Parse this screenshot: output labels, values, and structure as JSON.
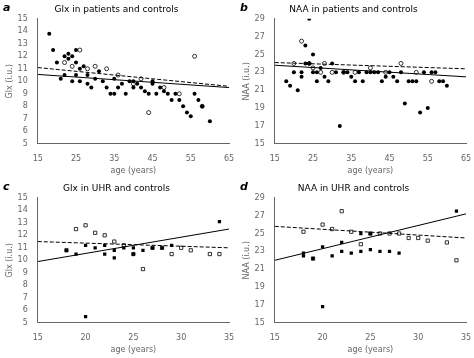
{
  "chart_data": [
    {
      "type": "scatter",
      "title": "Glx in patients and controls",
      "xlabel": "age (years)",
      "ylabel": "Glx (i.u.)",
      "xlim": [
        15,
        65
      ],
      "ylim": [
        5,
        15
      ],
      "xticks": [
        15,
        25,
        35,
        45,
        55,
        65
      ],
      "yticks": [
        5,
        6,
        7,
        8,
        9,
        10,
        11,
        12,
        13,
        14,
        15
      ],
      "grid": false,
      "annotations": [
        {
          "text": "a"
        }
      ],
      "series": [
        {
          "type": "scatter",
          "marker": "filled_circle",
          "color": "#000000",
          "x": [
            18,
            19,
            20,
            21,
            22,
            22,
            23,
            23,
            24,
            24,
            25,
            25,
            25,
            26,
            26,
            27,
            28,
            28,
            29,
            30,
            31,
            32,
            33,
            34,
            35,
            35,
            36,
            37,
            38,
            39,
            40,
            40,
            41,
            42,
            43,
            44,
            45,
            45,
            46,
            47,
            48,
            49,
            50,
            51,
            52,
            53,
            54,
            55,
            56,
            57,
            58,
            60
          ],
          "values": [
            13.8,
            12.5,
            11.5,
            10.2,
            12.0,
            10.5,
            12.2,
            11.8,
            12.0,
            10.0,
            10.5,
            11.5,
            12.5,
            11.0,
            10.0,
            11.2,
            10.5,
            9.8,
            9.5,
            10.2,
            10.8,
            10.0,
            9.5,
            9.0,
            10.2,
            9.0,
            9.5,
            9.8,
            9.0,
            10.0,
            10.0,
            9.5,
            9.8,
            9.5,
            9.2,
            9.0,
            10.0,
            9.8,
            9.0,
            9.5,
            9.2,
            9.0,
            8.5,
            9.0,
            8.5,
            8.0,
            7.5,
            7.2,
            9.0,
            8.5,
            8.0,
            6.8
          ]
        },
        {
          "type": "scatter",
          "marker": "open_circle",
          "color": "#000000",
          "x": [
            22,
            24,
            26,
            28,
            30,
            33,
            36,
            40,
            42,
            44,
            48,
            52,
            56,
            58
          ],
          "values": [
            11.5,
            11.2,
            12.5,
            11.0,
            11.2,
            11.0,
            10.5,
            9.8,
            10.2,
            7.5,
            9.5,
            9.0,
            12.0,
            8.0
          ]
        },
        {
          "type": "line",
          "line_style": "solid",
          "color": "#000000",
          "x": [
            15,
            65
          ],
          "values": [
            10.55,
            9.5
          ]
        },
        {
          "type": "line",
          "line_style": "dashed",
          "color": "#000000",
          "x": [
            15,
            65
          ],
          "values": [
            11.1,
            9.6
          ]
        }
      ]
    },
    {
      "type": "scatter",
      "title": "NAA in patients and controls",
      "xlabel": "age (years)",
      "ylabel": "NAA (i.u.)",
      "xlim": [
        15,
        65
      ],
      "ylim": [
        15,
        29
      ],
      "xticks": [
        15,
        25,
        35,
        45,
        55,
        65
      ],
      "yticks": [
        15,
        17,
        19,
        21,
        23,
        25,
        27,
        29
      ],
      "grid": false,
      "annotations": [
        {
          "text": "b"
        }
      ],
      "series": [
        {
          "type": "scatter",
          "marker": "filled_circle",
          "color": "#000000",
          "x": [
            18,
            19,
            20,
            21,
            22,
            22,
            23,
            23,
            24,
            24,
            25,
            25,
            26,
            26,
            27,
            28,
            29,
            30,
            31,
            32,
            33,
            34,
            35,
            36,
            37,
            38,
            39,
            40,
            41,
            42,
            43,
            44,
            45,
            46,
            47,
            48,
            49,
            50,
            51,
            52,
            53,
            54,
            55,
            56,
            57,
            58,
            59,
            60
          ],
          "values": [
            22,
            21.5,
            23,
            21,
            22.5,
            23,
            24,
            26,
            29,
            24,
            25,
            23,
            22,
            23,
            23.5,
            22.5,
            22,
            24,
            23,
            17,
            23,
            23,
            22.5,
            22,
            23,
            22,
            23,
            23,
            23,
            23,
            22,
            22.5,
            23,
            22.5,
            22,
            23,
            19.5,
            22,
            22,
            22,
            18.5,
            23,
            19,
            23,
            23,
            22,
            22,
            21.5
          ]
        },
        {
          "type": "scatter",
          "marker": "open_circle",
          "color": "#000000",
          "x": [
            20,
            22,
            24,
            25,
            27,
            28,
            30,
            33,
            36,
            40,
            44,
            48,
            52,
            56
          ],
          "values": [
            24,
            26.5,
            24,
            23.5,
            23,
            24,
            23,
            23,
            23,
            23.5,
            23,
            24,
            23,
            22
          ]
        },
        {
          "type": "line",
          "line_style": "solid",
          "color": "#000000",
          "x": [
            15,
            65
          ],
          "values": [
            23.8,
            22.5
          ]
        },
        {
          "type": "line",
          "line_style": "dashed",
          "color": "#000000",
          "x": [
            15,
            65
          ],
          "values": [
            24.1,
            23.4
          ]
        }
      ]
    },
    {
      "type": "scatter",
      "title": "Glx in UHR and controls",
      "xlabel": "age (years)",
      "ylabel": "Glx (i.u.)",
      "xlim": [
        15,
        35
      ],
      "ylim": [
        5,
        15
      ],
      "xticks": [
        15,
        20,
        25,
        30,
        35
      ],
      "yticks": [
        5,
        6,
        7,
        8,
        9,
        10,
        11,
        12,
        13,
        14,
        15
      ],
      "grid": false,
      "annotations": [
        {
          "text": "c"
        }
      ],
      "series": [
        {
          "type": "scatter",
          "marker": "filled_square",
          "color": "#000000",
          "x": [
            18,
            19,
            20,
            21,
            22,
            22,
            23,
            23,
            24,
            25,
            25,
            26,
            27,
            28,
            29,
            34
          ],
          "values": [
            10.8,
            10.5,
            11.2,
            11.0,
            11.2,
            10.5,
            10.8,
            10.2,
            11.0,
            11.0,
            10.5,
            10.8,
            11.0,
            11.0,
            11.2,
            13.1
          ]
        },
        {
          "type": "scatter",
          "marker": "open_square",
          "color": "#000000",
          "x": [
            18,
            19,
            20,
            21,
            22,
            23,
            24,
            25,
            26,
            27,
            28,
            29,
            30,
            31,
            33,
            34
          ],
          "values": [
            10.8,
            12.5,
            12.8,
            12.2,
            12.0,
            11.5,
            11.2,
            10.5,
            9.3,
            11.0,
            11.0,
            10.5,
            11.0,
            10.8,
            10.5,
            10.5
          ]
        },
        {
          "type": "scatter",
          "marker": "filled_square",
          "color": "#000000",
          "x": [
            20
          ],
          "values": [
            5.5
          ]
        },
        {
          "type": "line",
          "line_style": "solid",
          "color": "#000000",
          "x": [
            15,
            35
          ],
          "values": [
            9.9,
            12.5
          ]
        },
        {
          "type": "line",
          "line_style": "dashed",
          "color": "#000000",
          "x": [
            15,
            35
          ],
          "values": [
            11.5,
            11.0
          ]
        }
      ]
    },
    {
      "type": "scatter",
      "title": "NAA in UHR and controls",
      "xlabel": "age (years)",
      "ylabel": "NAA (i.u.)",
      "xlim": [
        15,
        35
      ],
      "ylim": [
        15,
        29
      ],
      "xticks": [
        15,
        20,
        25,
        30,
        35
      ],
      "yticks": [
        15,
        17,
        19,
        21,
        23,
        25,
        27,
        29
      ],
      "grid": false,
      "annotations": [
        {
          "text": "d"
        }
      ],
      "series": [
        {
          "type": "scatter",
          "marker": "filled_square",
          "color": "#000000",
          "x": [
            18,
            18,
            19,
            20,
            21,
            22,
            22,
            23,
            24,
            24,
            25,
            25,
            26,
            27,
            28,
            34
          ],
          "values": [
            22.5,
            22.8,
            22.2,
            23.5,
            22.5,
            24.0,
            23.0,
            22.8,
            25.0,
            23.0,
            25.0,
            23.2,
            23.0,
            23.0,
            22.8,
            27.5
          ]
        },
        {
          "type": "scatter",
          "marker": "open_square",
          "color": "#000000",
          "x": [
            18,
            19,
            20,
            21,
            22,
            23,
            24,
            25,
            26,
            27,
            28,
            29,
            30,
            31,
            33,
            34
          ],
          "values": [
            25.2,
            22.2,
            26.0,
            25.5,
            27.5,
            25.2,
            23.8,
            25.0,
            25.0,
            25.0,
            25.0,
            24.5,
            24.5,
            24.2,
            24.0,
            22.0
          ]
        },
        {
          "type": "scatter",
          "marker": "filled_square",
          "color": "#000000",
          "x": [
            20
          ],
          "values": [
            16.8
          ]
        },
        {
          "type": "line",
          "line_style": "solid",
          "color": "#000000",
          "x": [
            15,
            35
          ],
          "values": [
            22.0,
            27.2
          ]
        },
        {
          "type": "line",
          "line_style": "dashed",
          "color": "#000000",
          "x": [
            15,
            35
          ],
          "values": [
            25.8,
            24.5
          ]
        }
      ]
    }
  ]
}
